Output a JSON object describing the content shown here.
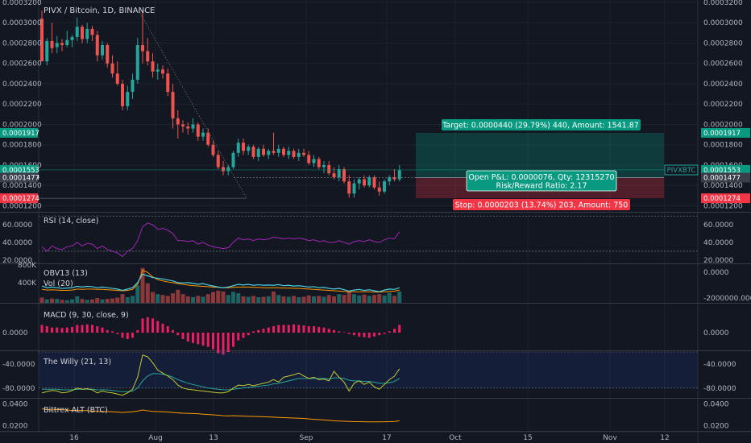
{
  "chart_data": {
    "type": "candlestick",
    "title": "PIVX / Bitcoin, 1D, BINANCE",
    "symbol_tag": "PIVXBTC",
    "colors": {
      "up": "#26a69a",
      "down": "#ef5350",
      "rsi": "#9c27b0",
      "obv": "#4dd0e1",
      "vol_ma": "#ff9800",
      "macd": "#e91e63",
      "willy": "#c0ca33",
      "willy_signal": "#26a69a",
      "bittrex": "#ff9800",
      "target": "#089981",
      "stop": "#f23645"
    },
    "price_axis": {
      "range": [
        0.000118,
        0.00032
      ],
      "ticks": [
        "0.0003200",
        "0.0003000",
        "0.0002800",
        "0.0002600",
        "0.0002400",
        "0.0002200",
        "0.0002000",
        "0.0001800",
        "0.0001600",
        "0.0001400",
        "0.0001200"
      ]
    },
    "price_labels": [
      {
        "text": "0.0001917",
        "color": "#089981"
      },
      {
        "text": "0.0001553",
        "color": "#089981"
      },
      {
        "text": "0.0001479",
        "color": "#26a69a"
      },
      {
        "text": "0.0001477",
        "color": "#3a3e4a"
      },
      {
        "text": "0.0001274",
        "color": "#f23645"
      }
    ],
    "x_axis": {
      "ticks": [
        "16",
        "Aug",
        "13",
        "Sep",
        "17",
        "Oct",
        "15",
        "Nov",
        "12"
      ]
    },
    "candles": [
      {
        "o": 0.000304,
        "h": 0.000312,
        "l": 0.000262,
        "c": 0.000262
      },
      {
        "o": 0.000262,
        "h": 0.000285,
        "l": 0.000258,
        "c": 0.000282
      },
      {
        "o": 0.000282,
        "h": 0.0003,
        "l": 0.00027,
        "c": 0.000275
      },
      {
        "o": 0.000276,
        "h": 0.000287,
        "l": 0.00027,
        "c": 0.00028
      },
      {
        "o": 0.00028,
        "h": 0.000284,
        "l": 0.000272,
        "c": 0.000278
      },
      {
        "o": 0.000278,
        "h": 0.000292,
        "l": 0.000276,
        "c": 0.000283
      },
      {
        "o": 0.000283,
        "h": 0.000288,
        "l": 0.000276,
        "c": 0.000286
      },
      {
        "o": 0.000286,
        "h": 0.000305,
        "l": 0.000282,
        "c": 0.000296
      },
      {
        "o": 0.000296,
        "h": 0.000298,
        "l": 0.00028,
        "c": 0.000284
      },
      {
        "o": 0.000284,
        "h": 0.0003,
        "l": 0.00028,
        "c": 0.000294
      },
      {
        "o": 0.000294,
        "h": 0.000297,
        "l": 0.000282,
        "c": 0.000288
      },
      {
        "o": 0.000288,
        "h": 0.000292,
        "l": 0.000262,
        "c": 0.000268
      },
      {
        "o": 0.000268,
        "h": 0.000282,
        "l": 0.000264,
        "c": 0.000278
      },
      {
        "o": 0.000278,
        "h": 0.00028,
        "l": 0.000256,
        "c": 0.00026
      },
      {
        "o": 0.00026,
        "h": 0.000268,
        "l": 0.000246,
        "c": 0.00025
      },
      {
        "o": 0.00025,
        "h": 0.000262,
        "l": 0.000238,
        "c": 0.00024
      },
      {
        "o": 0.00024,
        "h": 0.000244,
        "l": 0.000214,
        "c": 0.000218
      },
      {
        "o": 0.000218,
        "h": 0.000238,
        "l": 0.000214,
        "c": 0.000232
      },
      {
        "o": 0.000232,
        "h": 0.00025,
        "l": 0.000225,
        "c": 0.000244
      },
      {
        "o": 0.000244,
        "h": 0.000285,
        "l": 0.00024,
        "c": 0.000278
      },
      {
        "o": 0.000278,
        "h": 0.000312,
        "l": 0.00026,
        "c": 0.000272
      },
      {
        "o": 0.000272,
        "h": 0.000285,
        "l": 0.000258,
        "c": 0.000262
      },
      {
        "o": 0.000262,
        "h": 0.00027,
        "l": 0.000246,
        "c": 0.000252
      },
      {
        "o": 0.000252,
        "h": 0.00026,
        "l": 0.000244,
        "c": 0.000254
      },
      {
        "o": 0.000254,
        "h": 0.000258,
        "l": 0.000245,
        "c": 0.00025
      },
      {
        "o": 0.00025,
        "h": 0.000255,
        "l": 0.000228,
        "c": 0.000232
      },
      {
        "o": 0.000232,
        "h": 0.00024,
        "l": 0.000196,
        "c": 0.000206
      },
      {
        "o": 0.000206,
        "h": 0.000214,
        "l": 0.000186,
        "c": 0.0002
      },
      {
        "o": 0.0002,
        "h": 0.000204,
        "l": 0.000192,
        "c": 0.000198
      },
      {
        "o": 0.000198,
        "h": 0.000202,
        "l": 0.00019,
        "c": 0.000196
      },
      {
        "o": 0.000196,
        "h": 0.000206,
        "l": 0.000192,
        "c": 0.0002
      },
      {
        "o": 0.0002,
        "h": 0.000202,
        "l": 0.000184,
        "c": 0.000188
      },
      {
        "o": 0.000188,
        "h": 0.000196,
        "l": 0.000184,
        "c": 0.000192
      },
      {
        "o": 0.000192,
        "h": 0.000196,
        "l": 0.000178,
        "c": 0.00018
      },
      {
        "o": 0.00018,
        "h": 0.000184,
        "l": 0.000168,
        "c": 0.00017
      },
      {
        "o": 0.00017,
        "h": 0.000174,
        "l": 0.000156,
        "c": 0.000158
      },
      {
        "o": 0.000158,
        "h": 0.000164,
        "l": 0.00015,
        "c": 0.000154
      },
      {
        "o": 0.000154,
        "h": 0.00016,
        "l": 0.00015,
        "c": 0.000158
      },
      {
        "o": 0.000158,
        "h": 0.000174,
        "l": 0.000156,
        "c": 0.000172
      },
      {
        "o": 0.000172,
        "h": 0.000186,
        "l": 0.000168,
        "c": 0.000182
      },
      {
        "o": 0.000182,
        "h": 0.000186,
        "l": 0.00017,
        "c": 0.000174
      },
      {
        "o": 0.000174,
        "h": 0.00018,
        "l": 0.00017,
        "c": 0.000178
      },
      {
        "o": 0.000178,
        "h": 0.00018,
        "l": 0.000166,
        "c": 0.000168
      },
      {
        "o": 0.000168,
        "h": 0.000178,
        "l": 0.000164,
        "c": 0.000176
      },
      {
        "o": 0.000176,
        "h": 0.00018,
        "l": 0.000168,
        "c": 0.00017
      },
      {
        "o": 0.00017,
        "h": 0.000176,
        "l": 0.000166,
        "c": 0.000174
      },
      {
        "o": 0.000174,
        "h": 0.000192,
        "l": 0.00017,
        "c": 0.000172
      },
      {
        "o": 0.000172,
        "h": 0.00018,
        "l": 0.000168,
        "c": 0.000176
      },
      {
        "o": 0.000176,
        "h": 0.000178,
        "l": 0.000168,
        "c": 0.00017
      },
      {
        "o": 0.00017,
        "h": 0.000178,
        "l": 0.000166,
        "c": 0.000174
      },
      {
        "o": 0.000174,
        "h": 0.000176,
        "l": 0.000166,
        "c": 0.000168
      },
      {
        "o": 0.000168,
        "h": 0.000176,
        "l": 0.000164,
        "c": 0.000172
      },
      {
        "o": 0.000172,
        "h": 0.000176,
        "l": 0.000168,
        "c": 0.00017
      },
      {
        "o": 0.00017,
        "h": 0.000174,
        "l": 0.00016,
        "c": 0.000162
      },
      {
        "o": 0.000162,
        "h": 0.00017,
        "l": 0.000158,
        "c": 0.000166
      },
      {
        "o": 0.000166,
        "h": 0.000168,
        "l": 0.000156,
        "c": 0.000158
      },
      {
        "o": 0.000158,
        "h": 0.000164,
        "l": 0.000152,
        "c": 0.00016
      },
      {
        "o": 0.00016,
        "h": 0.000164,
        "l": 0.00015,
        "c": 0.000152
      },
      {
        "o": 0.000152,
        "h": 0.000158,
        "l": 0.000146,
        "c": 0.000148
      },
      {
        "o": 0.000148,
        "h": 0.00016,
        "l": 0.000144,
        "c": 0.000156
      },
      {
        "o": 0.000156,
        "h": 0.000158,
        "l": 0.000142,
        "c": 0.000144
      },
      {
        "o": 0.000144,
        "h": 0.00015,
        "l": 0.000128,
        "c": 0.000132
      },
      {
        "o": 0.000132,
        "h": 0.000146,
        "l": 0.000128,
        "c": 0.000142
      },
      {
        "o": 0.000142,
        "h": 0.000148,
        "l": 0.000136,
        "c": 0.000146
      },
      {
        "o": 0.000146,
        "h": 0.00015,
        "l": 0.000138,
        "c": 0.00014
      },
      {
        "o": 0.00014,
        "h": 0.00015,
        "l": 0.000138,
        "c": 0.000148
      },
      {
        "o": 0.000148,
        "h": 0.00015,
        "l": 0.000136,
        "c": 0.000138
      },
      {
        "o": 0.000138,
        "h": 0.000144,
        "l": 0.00013,
        "c": 0.000134
      },
      {
        "o": 0.000134,
        "h": 0.000146,
        "l": 0.000132,
        "c": 0.000144
      },
      {
        "o": 0.000144,
        "h": 0.00015,
        "l": 0.00014,
        "c": 0.000148
      },
      {
        "o": 0.000148,
        "h": 0.000156,
        "l": 0.000144,
        "c": 0.000146
      },
      {
        "o": 0.000146,
        "h": 0.00016,
        "l": 0.000144,
        "c": 0.000155
      }
    ],
    "position": {
      "target_label": "Target: 0.0000440 (29.79%) 440, Amount: 1541.87",
      "stop_label": "Stop: 0.0000203 (13.74%) 203, Amount: 750",
      "pnl_line1": "Open P&L: 0.0000076, Qty: 12315270",
      "pnl_line2": "Risk/Reward Ratio: 2.17",
      "entry": 0.0001477,
      "target": 0.0001917,
      "stop": 0.0001274
    },
    "rsi": {
      "title": "RSI (14, close)",
      "ticks": [
        "60.0000",
        "40.0000",
        "20.0000"
      ],
      "range": [
        18,
        72
      ],
      "values": [
        35,
        30,
        36,
        33,
        32,
        35,
        36,
        40,
        36,
        39,
        38,
        33,
        36,
        32,
        30,
        28,
        24,
        30,
        33,
        42,
        58,
        62,
        60,
        55,
        56,
        54,
        50,
        42,
        42,
        41,
        42,
        38,
        40,
        37,
        35,
        34,
        33,
        34,
        40,
        45,
        43,
        44,
        42,
        44,
        43,
        44,
        46,
        45,
        44,
        45,
        44,
        45,
        44,
        42,
        43,
        41,
        42,
        40,
        40,
        42,
        40,
        38,
        41,
        42,
        41,
        43,
        41,
        40,
        43,
        45,
        44,
        52
      ]
    },
    "obv": {
      "title": "OBV13 (13)",
      "vol_title": "Vol (20)",
      "left_ticks": [
        "800K",
        "400K"
      ],
      "right_ticks": [
        "0.0000",
        "-2000000.0000"
      ],
      "volumes": [
        120,
        80,
        100,
        90,
        70,
        60,
        80,
        150,
        90,
        70,
        80,
        110,
        80,
        90,
        100,
        120,
        200,
        130,
        160,
        400,
        800,
        450,
        250,
        200,
        180,
        160,
        220,
        300,
        200,
        150,
        130,
        160,
        140,
        200,
        250,
        280,
        260,
        180,
        250,
        220,
        150,
        140,
        160,
        130,
        140,
        150,
        260,
        180,
        150,
        140,
        160,
        130,
        140,
        170,
        150,
        160,
        140,
        180,
        150,
        200,
        180,
        260,
        200,
        170,
        190,
        160,
        180,
        200,
        170,
        230,
        160,
        260
      ],
      "obv_norm": [
        0.45,
        0.4,
        0.42,
        0.4,
        0.38,
        0.39,
        0.4,
        0.44,
        0.42,
        0.44,
        0.43,
        0.4,
        0.42,
        0.4,
        0.38,
        0.36,
        0.32,
        0.36,
        0.4,
        0.55,
        0.8,
        0.75,
        0.7,
        0.68,
        0.66,
        0.63,
        0.6,
        0.55,
        0.54,
        0.55,
        0.53,
        0.5,
        0.52,
        0.48,
        0.45,
        0.42,
        0.4,
        0.42,
        0.46,
        0.5,
        0.48,
        0.5,
        0.47,
        0.49,
        0.47,
        0.48,
        0.47,
        0.49,
        0.46,
        0.47,
        0.45,
        0.46,
        0.44,
        0.42,
        0.43,
        0.4,
        0.41,
        0.38,
        0.36,
        0.38,
        0.34,
        0.3,
        0.33,
        0.35,
        0.32,
        0.34,
        0.31,
        0.28,
        0.33,
        0.36,
        0.35,
        0.4
      ],
      "ma_norm": [
        0.35,
        0.33,
        0.34,
        0.33,
        0.32,
        0.32,
        0.33,
        0.36,
        0.35,
        0.36,
        0.36,
        0.35,
        0.35,
        0.34,
        0.33,
        0.32,
        0.31,
        0.32,
        0.35,
        0.5,
        0.92,
        0.85,
        0.72,
        0.64,
        0.6,
        0.57,
        0.55,
        0.52,
        0.5,
        0.48,
        0.46,
        0.45,
        0.44,
        0.43,
        0.42,
        0.41,
        0.4,
        0.4,
        0.41,
        0.42,
        0.42,
        0.42,
        0.41,
        0.41,
        0.4,
        0.4,
        0.4,
        0.4,
        0.39,
        0.39,
        0.38,
        0.38,
        0.37,
        0.36,
        0.35,
        0.34,
        0.33,
        0.32,
        0.31,
        0.3,
        0.29,
        0.28,
        0.28,
        0.28,
        0.28,
        0.28,
        0.27,
        0.27,
        0.28,
        0.29,
        0.3,
        0.33
      ]
    },
    "macd": {
      "title": "MACD (9, 30, close, 9)",
      "tick": "0.0000",
      "values": [
        0.3,
        0.25,
        0.2,
        0.2,
        0.18,
        0.2,
        0.22,
        0.3,
        0.3,
        0.32,
        0.3,
        0.25,
        0.2,
        0.1,
        0.05,
        -0.05,
        -0.2,
        -0.25,
        -0.2,
        0.1,
        0.55,
        0.6,
        0.55,
        0.45,
        0.35,
        0.25,
        0.1,
        -0.1,
        -0.25,
        -0.35,
        -0.4,
        -0.45,
        -0.5,
        -0.55,
        -0.65,
        -0.8,
        -0.85,
        -0.75,
        -0.55,
        -0.3,
        -0.2,
        -0.1,
        0.05,
        0.1,
        0.15,
        0.2,
        0.25,
        0.3,
        0.3,
        0.3,
        0.32,
        0.3,
        0.28,
        0.25,
        0.25,
        0.22,
        0.2,
        0.15,
        0.1,
        0.05,
        0.02,
        -0.05,
        -0.1,
        -0.15,
        -0.18,
        -0.2,
        -0.15,
        -0.1,
        -0.05,
        0.05,
        0.15,
        0.3
      ]
    },
    "willy": {
      "title": "The Willy (21, 13)",
      "ticks": [
        "-40.0000",
        "-80.0000"
      ],
      "range": [
        -95,
        -20
      ],
      "values": [
        -88,
        -86,
        -84,
        -85,
        -88,
        -87,
        -84,
        -80,
        -82,
        -81,
        -83,
        -88,
        -85,
        -87,
        -88,
        -90,
        -92,
        -88,
        -82,
        -62,
        -25,
        -28,
        -38,
        -50,
        -55,
        -60,
        -66,
        -75,
        -80,
        -82,
        -83,
        -84,
        -85,
        -86,
        -87,
        -88,
        -88,
        -86,
        -80,
        -75,
        -76,
        -74,
        -76,
        -74,
        -72,
        -70,
        -66,
        -70,
        -62,
        -60,
        -58,
        -55,
        -60,
        -64,
        -62,
        -66,
        -65,
        -68,
        -52,
        -62,
        -70,
        -85,
        -72,
        -68,
        -74,
        -70,
        -78,
        -82,
        -74,
        -66,
        -60,
        -48
      ],
      "signal": [
        -82,
        -82,
        -82,
        -82,
        -83,
        -83,
        -83,
        -82,
        -82,
        -82,
        -82,
        -83,
        -83,
        -83,
        -84,
        -85,
        -86,
        -86,
        -85,
        -80,
        -68,
        -60,
        -56,
        -56,
        -57,
        -59,
        -62,
        -66,
        -69,
        -72,
        -74,
        -76,
        -78,
        -80,
        -81,
        -82,
        -83,
        -83,
        -82,
        -81,
        -80,
        -79,
        -78,
        -77,
        -76,
        -75,
        -73,
        -72,
        -70,
        -68,
        -66,
        -64,
        -64,
        -64,
        -64,
        -64,
        -64,
        -65,
        -63,
        -63,
        -64,
        -67,
        -68,
        -68,
        -69,
        -69,
        -70,
        -72,
        -72,
        -71,
        -69,
        -64
      ]
    },
    "bittrex": {
      "title": "Bittrex ALT (BTC)",
      "ticks": [
        "0.0400",
        "0.0200"
      ],
      "range": [
        0.015,
        0.045
      ],
      "values": [
        0.0355,
        0.035,
        0.0345,
        0.035,
        0.0348,
        0.0345,
        0.034,
        0.0342,
        0.034,
        0.0338,
        0.0335,
        0.033,
        0.0332,
        0.033,
        0.0328,
        0.0325,
        0.0322,
        0.0325,
        0.0328,
        0.0335,
        0.0345,
        0.0338,
        0.0332,
        0.033,
        0.0328,
        0.0326,
        0.0322,
        0.0318,
        0.0315,
        0.0314,
        0.0312,
        0.031,
        0.0306,
        0.0303,
        0.03,
        0.0296,
        0.0292,
        0.029,
        0.0292,
        0.029,
        0.0288,
        0.0286,
        0.0285,
        0.0283,
        0.0282,
        0.028,
        0.0278,
        0.0276,
        0.0274,
        0.0272,
        0.027,
        0.0268,
        0.0266,
        0.0262,
        0.0258,
        0.0255,
        0.0252,
        0.0248,
        0.0245,
        0.0242,
        0.024,
        0.0238,
        0.0236,
        0.0236,
        0.0235,
        0.0234,
        0.0234,
        0.0234,
        0.0235,
        0.0236,
        0.0238,
        0.0245
      ]
    }
  }
}
